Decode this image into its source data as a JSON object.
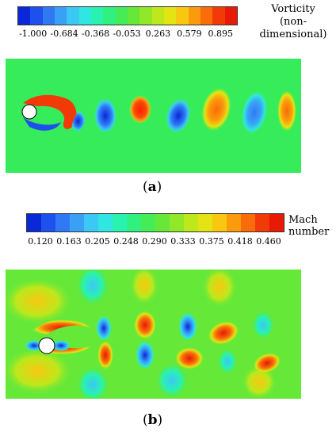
{
  "colorbar_vorticity": {
    "title_line1": "Vorticity",
    "title_line2": "(non-dimensional)",
    "ticks": [
      "-1.000",
      "-0.684",
      "-0.368",
      "-0.053",
      "0.263",
      "0.579",
      "0.895"
    ],
    "colors": [
      "#0a28d8",
      "#1e50ee",
      "#2f7af4",
      "#3aa0f6",
      "#3cc8f4",
      "#30e6e0",
      "#28f2b0",
      "#30f080",
      "#44ec58",
      "#66e838",
      "#90e828",
      "#bce81c",
      "#e4e414",
      "#f8c810",
      "#fb9a0c",
      "#f86c0a",
      "#f23a08",
      "#e81a06"
    ]
  },
  "colorbar_mach": {
    "title_line1": "Mach",
    "title_line2": "number",
    "ticks": [
      "0.120",
      "0.163",
      "0.205",
      "0.248",
      "0.290",
      "0.333",
      "0.375",
      "0.418",
      "0.460"
    ],
    "colors": [
      "#0a28d8",
      "#1e50ee",
      "#2f7af4",
      "#3aa0f6",
      "#3cc8f4",
      "#30e6e0",
      "#28f2b0",
      "#30f080",
      "#44ec58",
      "#66e838",
      "#90e828",
      "#bce81c",
      "#e4e414",
      "#f8c810",
      "#fb9a0c",
      "#f86c0a",
      "#f23a08",
      "#e81a06"
    ]
  },
  "panels": {
    "a_label": "a",
    "b_label": "b"
  }
}
